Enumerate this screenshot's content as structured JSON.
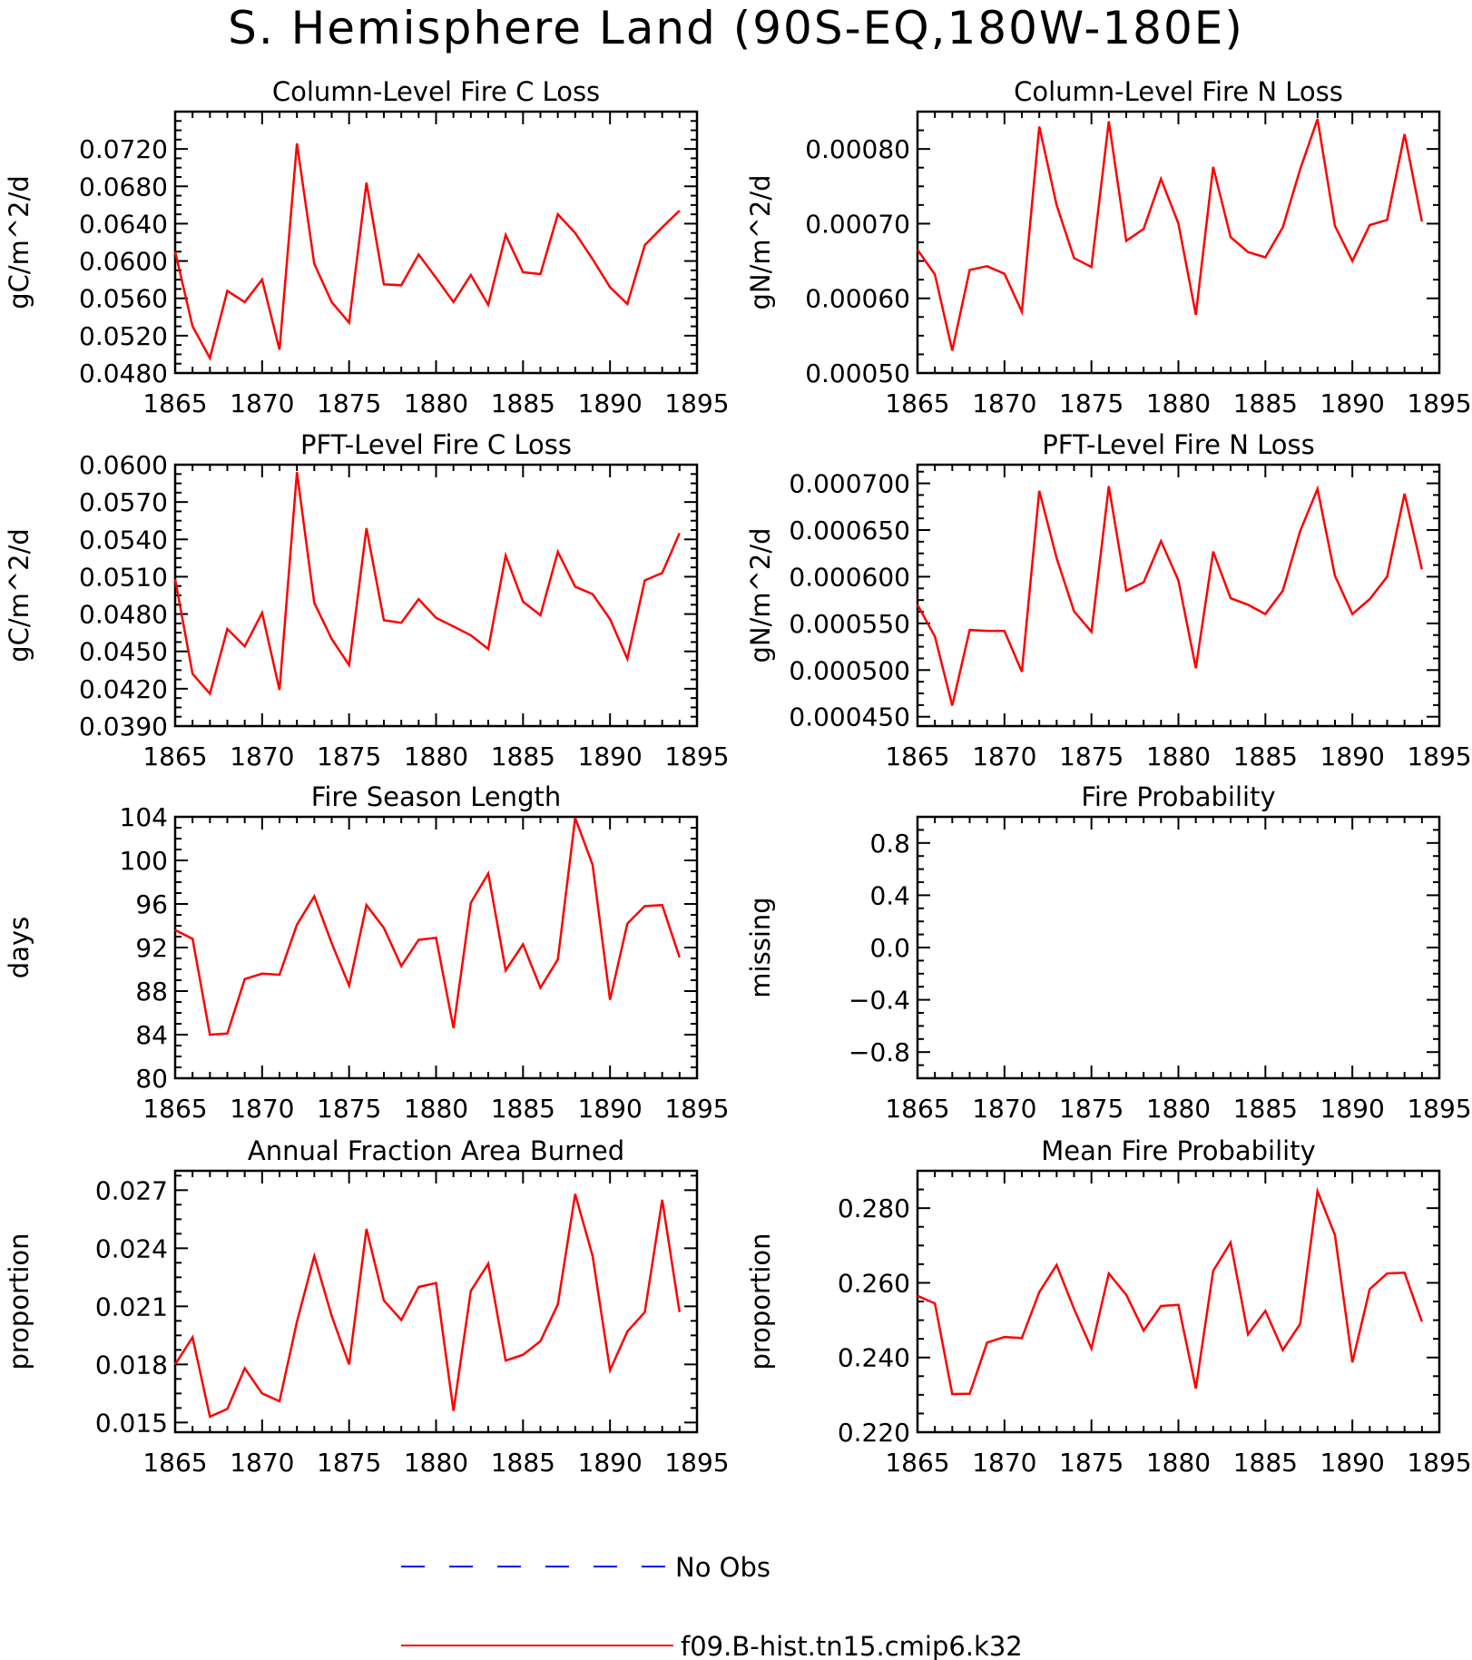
{
  "figure": {
    "title": "S. Hemisphere Land (90S-EQ,180W-180E)",
    "colors": {
      "model": "#ff0000",
      "obs": "#0000ff",
      "axis": "#000000"
    }
  },
  "legend": [
    {
      "label": "No Obs",
      "color": "#0000ff",
      "style": "dashed"
    },
    {
      "label": "f09.B-hist.tn15.cmip6.k32",
      "color": "#ff0000",
      "style": "solid"
    }
  ],
  "chart_data": [
    {
      "id": "col-c-loss",
      "type": "line",
      "title": "Column-Level Fire C Loss",
      "ylabel": "gC/m^2/d",
      "xlim": [
        1865,
        1895
      ],
      "ylim": [
        0.048,
        0.076
      ],
      "xticks": [
        "1865",
        "1870",
        "1875",
        "1880",
        "1885",
        "1890",
        "1895"
      ],
      "yticks": [
        "0.0480",
        "0.0520",
        "0.0560",
        "0.0600",
        "0.0640",
        "0.0680",
        "0.0720"
      ],
      "x_start": 1865,
      "values": [
        0.061,
        0.053,
        0.0496,
        0.0568,
        0.0556,
        0.058,
        0.0505,
        0.0726,
        0.0597,
        0.0556,
        0.0534,
        0.0684,
        0.0575,
        0.0574,
        0.0607,
        0.0582,
        0.0556,
        0.0585,
        0.0553,
        0.0628,
        0.0588,
        0.0586,
        0.065,
        0.063,
        0.0602,
        0.0572,
        0.0554,
        0.0617,
        0.0636,
        0.0654
      ]
    },
    {
      "id": "col-n-loss",
      "type": "line",
      "title": "Column-Level Fire N Loss",
      "ylabel": "gN/m^2/d",
      "xlim": [
        1865,
        1895
      ],
      "ylim": [
        0.0005,
        0.00085
      ],
      "xticks": [
        "1865",
        "1870",
        "1875",
        "1880",
        "1885",
        "1890",
        "1895"
      ],
      "yticks": [
        "0.00050",
        "0.00060",
        "0.00070",
        "0.00080"
      ],
      "x_start": 1865,
      "values": [
        0.000665,
        0.000632,
        0.00053,
        0.000638,
        0.000643,
        0.000633,
        0.000582,
        0.00083,
        0.000725,
        0.000654,
        0.000642,
        0.000837,
        0.000677,
        0.000693,
        0.00076,
        0.0007,
        0.000578,
        0.000776,
        0.000682,
        0.000662,
        0.000655,
        0.000695,
        0.000773,
        0.00084,
        0.000697,
        0.00065,
        0.000698,
        0.000705,
        0.00082,
        0.000703
      ]
    },
    {
      "id": "pft-c-loss",
      "type": "line",
      "title": "PFT-Level Fire C Loss",
      "ylabel": "gC/m^2/d",
      "xlim": [
        1865,
        1895
      ],
      "ylim": [
        0.039,
        0.06
      ],
      "xticks": [
        "1865",
        "1870",
        "1875",
        "1880",
        "1885",
        "1890",
        "1895"
      ],
      "yticks": [
        "0.0390",
        "0.0420",
        "0.0450",
        "0.0480",
        "0.0510",
        "0.0540",
        "0.0570",
        "0.0600"
      ],
      "x_start": 1865,
      "values": [
        0.0508,
        0.0432,
        0.0416,
        0.0468,
        0.0454,
        0.0481,
        0.0419,
        0.0594,
        0.0489,
        0.046,
        0.0439,
        0.0549,
        0.0475,
        0.0473,
        0.0492,
        0.0477,
        0.047,
        0.0463,
        0.0452,
        0.0527,
        0.049,
        0.0479,
        0.053,
        0.0502,
        0.0496,
        0.0476,
        0.0444,
        0.0507,
        0.0513,
        0.0545
      ]
    },
    {
      "id": "pft-n-loss",
      "type": "line",
      "title": "PFT-Level Fire N Loss",
      "ylabel": "gN/m^2/d",
      "xlim": [
        1865,
        1895
      ],
      "ylim": [
        0.00044,
        0.00072
      ],
      "xticks": [
        "1865",
        "1870",
        "1875",
        "1880",
        "1885",
        "1890",
        "1895"
      ],
      "yticks": [
        "0.000450",
        "0.000500",
        "0.000550",
        "0.000600",
        "0.000650",
        "0.000700"
      ],
      "x_start": 1865,
      "values": [
        0.00057,
        0.000536,
        0.000462,
        0.000543,
        0.000542,
        0.000542,
        0.000498,
        0.000692,
        0.00062,
        0.000563,
        0.000541,
        0.000697,
        0.000585,
        0.000594,
        0.000638,
        0.000596,
        0.000502,
        0.000627,
        0.000577,
        0.00057,
        0.00056,
        0.000585,
        0.000649,
        0.000694,
        0.000601,
        0.00056,
        0.000576,
        0.0006,
        0.000689,
        0.000608
      ]
    },
    {
      "id": "season-length",
      "type": "line",
      "title": "Fire Season Length",
      "ylabel": "days",
      "xlim": [
        1865,
        1895
      ],
      "ylim": [
        80,
        104
      ],
      "xticks": [
        "1865",
        "1870",
        "1875",
        "1880",
        "1885",
        "1890",
        "1895"
      ],
      "yticks": [
        "80",
        "84",
        "88",
        "92",
        "96",
        "100",
        "104"
      ],
      "x_start": 1865,
      "values": [
        93.6,
        92.8,
        84.0,
        84.1,
        89.1,
        89.6,
        89.5,
        94.1,
        96.7,
        92.4,
        88.5,
        95.9,
        93.8,
        90.3,
        92.7,
        92.9,
        84.6,
        96.1,
        98.8,
        89.9,
        92.3,
        88.3,
        90.9,
        103.9,
        99.6,
        87.2,
        94.2,
        95.8,
        95.9,
        91.1
      ]
    },
    {
      "id": "fire-prob",
      "type": "line",
      "title": "Fire Probability",
      "ylabel": "missing",
      "xlim": [
        1865,
        1895
      ],
      "ylim": [
        -1.0,
        1.0
      ],
      "xticks": [
        "1865",
        "1870",
        "1875",
        "1880",
        "1885",
        "1890",
        "1895"
      ],
      "yticks": [
        "−0.8",
        "−0.4",
        "0.0",
        "0.4",
        "0.8"
      ],
      "x_start": 1865,
      "values": []
    },
    {
      "id": "area-burned",
      "type": "line",
      "title": "Annual Fraction Area Burned",
      "ylabel": "proportion",
      "xlim": [
        1865,
        1895
      ],
      "ylim": [
        0.0145,
        0.028
      ],
      "xticks": [
        "1865",
        "1870",
        "1875",
        "1880",
        "1885",
        "1890",
        "1895"
      ],
      "yticks": [
        "0.015",
        "0.018",
        "0.021",
        "0.024",
        "0.027"
      ],
      "x_start": 1865,
      "values": [
        0.018,
        0.0194,
        0.0153,
        0.0157,
        0.0178,
        0.0165,
        0.0161,
        0.0202,
        0.0236,
        0.0205,
        0.018,
        0.025,
        0.0213,
        0.0203,
        0.022,
        0.0222,
        0.0156,
        0.0218,
        0.0232,
        0.0182,
        0.0185,
        0.0192,
        0.0211,
        0.0268,
        0.0236,
        0.0177,
        0.0197,
        0.0207,
        0.0265,
        0.0207
      ]
    },
    {
      "id": "mean-fire-prob",
      "type": "line",
      "title": "Mean Fire Probability",
      "ylabel": "proportion",
      "xlim": [
        1865,
        1895
      ],
      "ylim": [
        0.22,
        0.29
      ],
      "xticks": [
        "1865",
        "1870",
        "1875",
        "1880",
        "1885",
        "1890",
        "1895"
      ],
      "yticks": [
        "0.220",
        "0.240",
        "0.260",
        "0.280"
      ],
      "x_start": 1865,
      "values": [
        0.2565,
        0.2545,
        0.2302,
        0.2303,
        0.244,
        0.2455,
        0.2452,
        0.2575,
        0.2648,
        0.253,
        0.2424,
        0.2625,
        0.2568,
        0.2472,
        0.2538,
        0.2541,
        0.2317,
        0.2632,
        0.2708,
        0.2462,
        0.2525,
        0.242,
        0.249,
        0.2845,
        0.2728,
        0.2387,
        0.2583,
        0.2625,
        0.2627,
        0.2496
      ]
    }
  ]
}
